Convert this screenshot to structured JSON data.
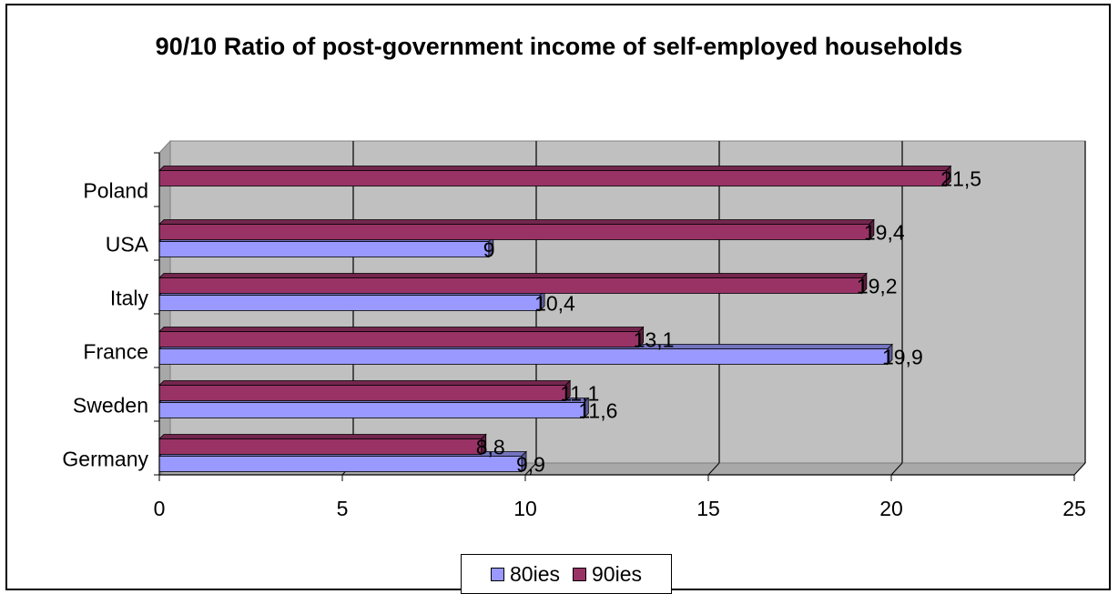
{
  "chart_data": {
    "type": "bar",
    "orientation": "horizontal",
    "title": "90/10 Ratio of post-government income of self-employed households",
    "categories": [
      "Germany",
      "Sweden",
      "France",
      "Italy",
      "USA",
      "Poland"
    ],
    "series": [
      {
        "name": "80ies",
        "color": "#9999ff",
        "values": [
          9.9,
          11.6,
          19.9,
          10.4,
          9,
          null
        ],
        "labels": [
          "9,9",
          "11,6",
          "19,9",
          "10,4",
          "9",
          ""
        ]
      },
      {
        "name": "90ies",
        "color": "#993366",
        "values": [
          8.8,
          11.1,
          13.1,
          19.2,
          19.4,
          21.5
        ],
        "labels": [
          "8,8",
          "11,1",
          "13,1",
          "19,2",
          "19,4",
          "21,5"
        ]
      }
    ],
    "xlim": [
      0,
      25
    ],
    "xticks": [
      "0",
      "5",
      "10",
      "15",
      "20",
      "25"
    ],
    "grid": "vertical",
    "legend_position": "bottom",
    "style": "3d"
  }
}
